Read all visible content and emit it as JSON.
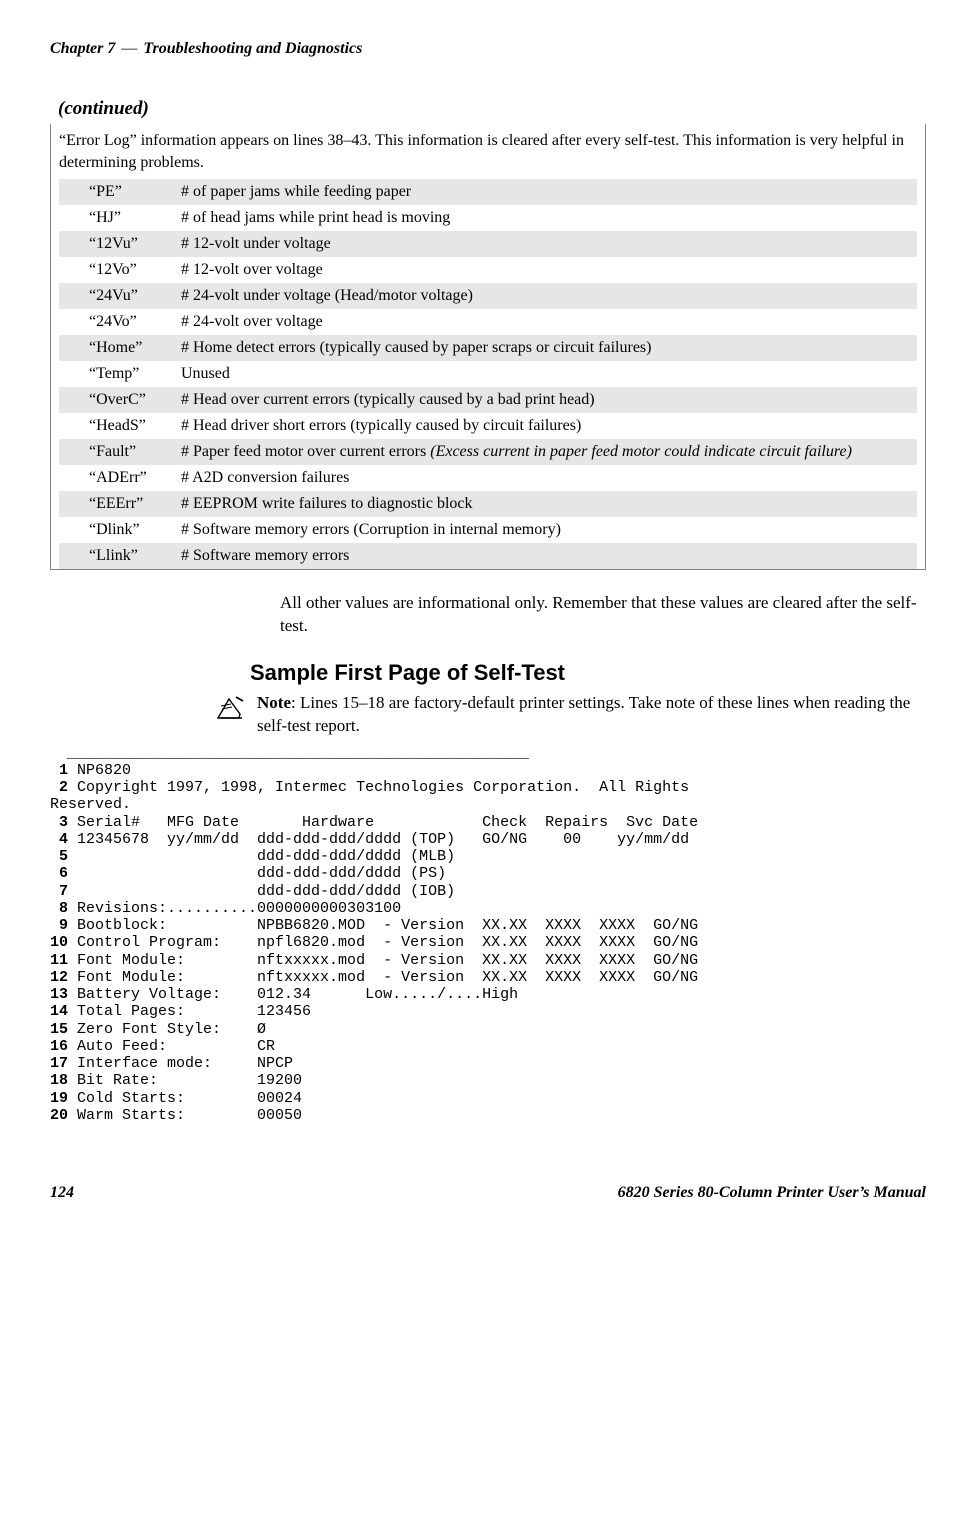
{
  "header": {
    "chapter": "Chapter 7",
    "dash": "—",
    "title": "Troubleshooting and Diagnostics"
  },
  "continued_label": "(continued)",
  "intro": "“Error Log” information appears on lines 38–43. This information is cleared after every self-test. This information is very helpful in determining problems.",
  "rows": [
    {
      "code": "“PE”",
      "desc": "# of paper jams while feeding paper",
      "shaded": true
    },
    {
      "code": "“HJ”",
      "desc": "# of head jams while print head is moving",
      "shaded": false
    },
    {
      "code": "“12Vu”",
      "desc": "# 12-volt under voltage",
      "shaded": true
    },
    {
      "code": "“12Vo”",
      "desc": "# 12-volt over voltage",
      "shaded": false
    },
    {
      "code": "“24Vu”",
      "desc": "# 24-volt under voltage (Head/motor voltage)",
      "shaded": true
    },
    {
      "code": "“24Vo”",
      "desc": "# 24-volt over voltage",
      "shaded": false
    },
    {
      "code": "“Home”",
      "desc": "# Home detect errors (typically caused by paper scraps or circuit failures)",
      "shaded": true
    },
    {
      "code": "“Temp”",
      "desc": "Unused",
      "shaded": false
    },
    {
      "code": "“OverC”",
      "desc": "# Head over current errors (typically caused by a bad print head)",
      "shaded": true
    },
    {
      "code": "“HeadS”",
      "desc": "# Head driver short errors (typically caused by circuit failures)",
      "shaded": false
    },
    {
      "code": "“Fault”",
      "desc_prefix": "# Paper feed motor over current errors ",
      "desc_italic": "(Excess current in paper feed motor could indicate circuit failure)",
      "shaded": true
    },
    {
      "code": "“ADErr”",
      "desc": "# A2D conversion failures",
      "shaded": false
    },
    {
      "code": "“EEErr”",
      "desc": "# EEPROM write failures to diagnostic block",
      "shaded": true
    },
    {
      "code": "“Dlink”",
      "desc": "# Software memory errors (Corruption in internal memory)",
      "shaded": false
    },
    {
      "code": "“Llink”",
      "desc": "# Software memory errors",
      "shaded": true
    }
  ],
  "after_table_para": "All other values are informational only. Remember that these values are cleared after the self-test.",
  "section_heading": "Sample First Page of Self-Test",
  "note_label": "Note",
  "note_text": ": Lines 15–18 are factory-default printer settings. Take note of these lines when reading the self-test report.",
  "rule": "  _______________________________________________________",
  "selftest": {
    "lines": [
      {
        "n": " 1",
        "t": " NP6820"
      },
      {
        "n": " 2",
        "t": " Copyright 1997, 1998, Intermec Technologies Corporation.  All Rights"
      },
      {
        "n": "  ",
        "t": "Reserved.",
        "nobold": true
      },
      {
        "n": " 3",
        "t": " Serial#   MFG Date       Hardware            Check  Repairs  Svc Date"
      },
      {
        "n": " 4",
        "t": " 12345678  yy/mm/dd  ddd-ddd-ddd/dddd (TOP)   GO/NG    00    yy/mm/dd"
      },
      {
        "n": " 5",
        "t": "                     ddd-ddd-ddd/dddd (MLB)"
      },
      {
        "n": " 6",
        "t": "                     ddd-ddd-ddd/dddd (PS)"
      },
      {
        "n": " 7",
        "t": "                     ddd-ddd-ddd/dddd (IOB)"
      },
      {
        "n": " 8",
        "t": " Revisions:..........0000000000303100"
      },
      {
        "n": " 9",
        "t": " Bootblock:          NPBB6820.MOD  - Version  XX.XX  XXXX  XXXX  GO/NG"
      },
      {
        "n": "10",
        "t": " Control Program:    npfl6820.mod  - Version  XX.XX  XXXX  XXXX  GO/NG"
      },
      {
        "n": "11",
        "t": " Font Module:        nftxxxxx.mod  - Version  XX.XX  XXXX  XXXX  GO/NG"
      },
      {
        "n": "12",
        "t": " Font Module:        nftxxxxx.mod  - Version  XX.XX  XXXX  XXXX  GO/NG"
      },
      {
        "n": "13",
        "t": " Battery Voltage:    012.34      Low...../....High"
      },
      {
        "n": "14",
        "t": " Total Pages:        123456"
      },
      {
        "n": "15",
        "t": " Zero Font Style:    Ø"
      },
      {
        "n": "16",
        "t": " Auto Feed:          CR"
      },
      {
        "n": "17",
        "t": " Interface mode:     NPCP"
      },
      {
        "n": "18",
        "t": " Bit Rate:           19200"
      },
      {
        "n": "19",
        "t": " Cold Starts:        00024"
      },
      {
        "n": "20",
        "t": " Warm Starts:        00050"
      }
    ]
  },
  "footer": {
    "page": "124",
    "title": "6820 Series 80-Column Printer User’s Manual"
  }
}
